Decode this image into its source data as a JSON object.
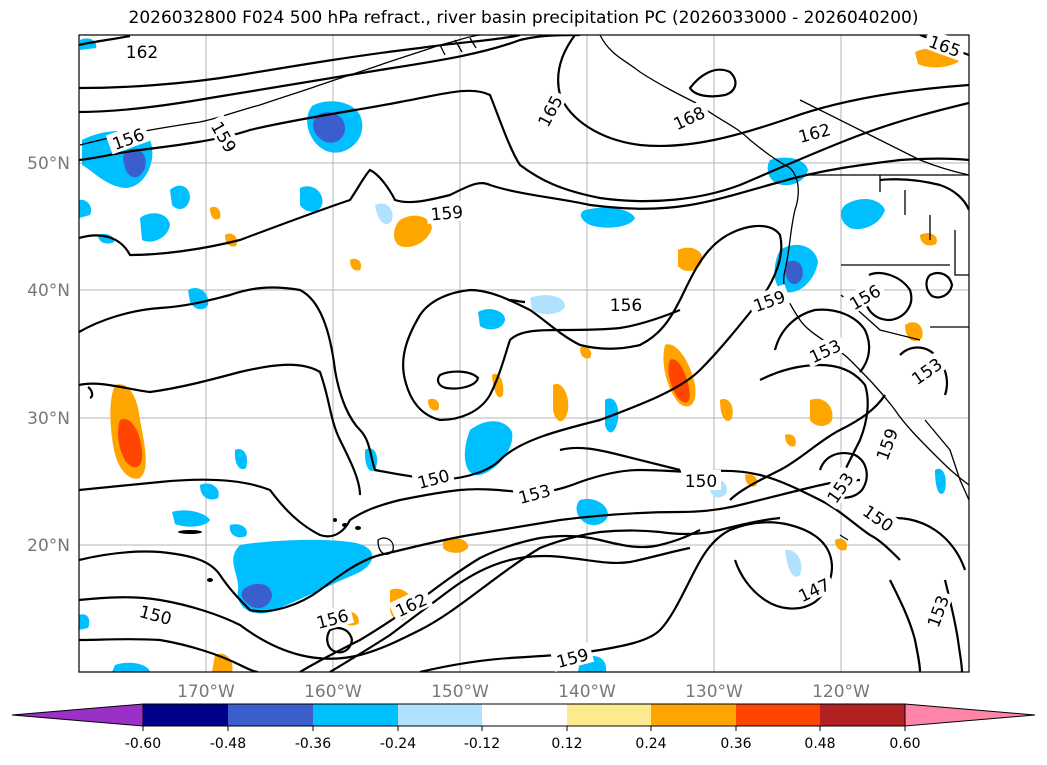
{
  "title": "2026032800 F024 500 hPa refract., river basin precipitation PC (2026033000 - 2026040200)",
  "axes": {
    "lat_labels": [
      "50°N",
      "40°N",
      "30°N",
      "20°N"
    ],
    "lon_labels": [
      "170°W",
      "160°W",
      "150°W",
      "140°W",
      "130°W",
      "120°W"
    ]
  },
  "contour_labels": [
    "162",
    "165",
    "156",
    "159",
    "168",
    "162",
    "159",
    "156",
    "159",
    "156",
    "153",
    "153",
    "150",
    "153",
    "150",
    "159",
    "153",
    "150",
    "147",
    "150",
    "156",
    "162",
    "159",
    "153",
    "165"
  ],
  "colorbar": {
    "ticks": [
      "-0.60",
      "-0.48",
      "-0.36",
      "-0.24",
      "-0.12",
      "0.12",
      "0.24",
      "0.36",
      "0.48",
      "0.60"
    ],
    "colors": [
      "#9a30c8",
      "#00008b",
      "#3a5fcd",
      "#00bfff",
      "#b0e2ff",
      "#ffffff",
      "#fdea8f",
      "#ffa500",
      "#ff4500",
      "#b22222",
      "#ff85a8"
    ]
  },
  "colors": {
    "neg_light": "#b0e2ff",
    "neg_mid": "#00bfff",
    "neg_dark": "#3a5fcd",
    "neg_darkest": "#00008b",
    "pos_light": "#fdea8f",
    "pos_mid": "#ffa500",
    "pos_dark": "#ff4500",
    "pos_darkest": "#b22222"
  }
}
